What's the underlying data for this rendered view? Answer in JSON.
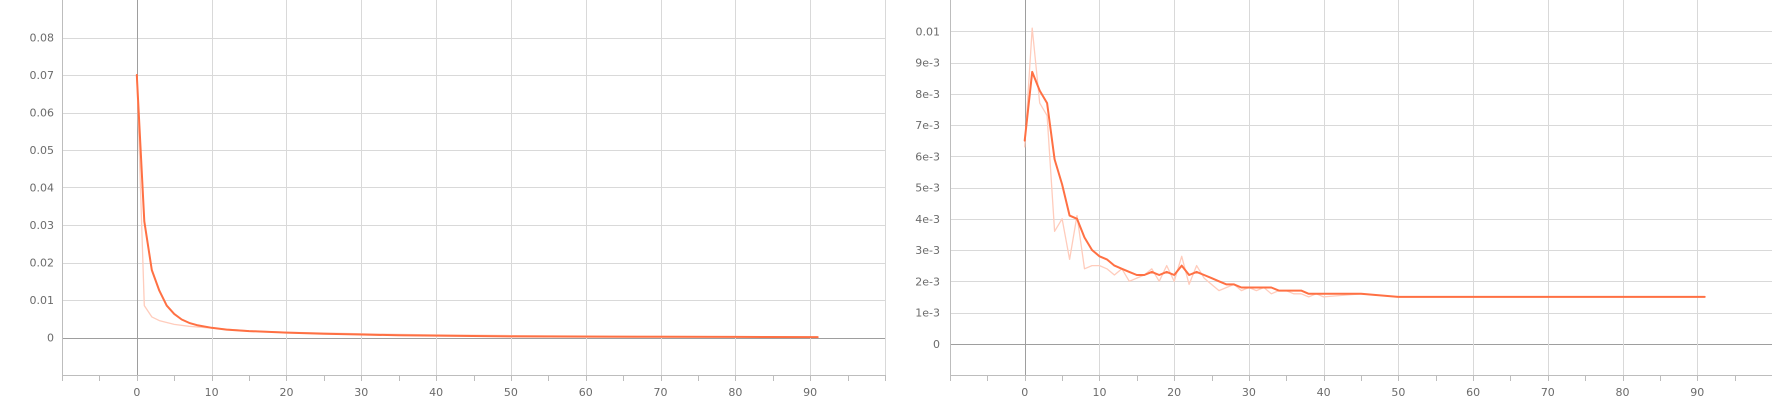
{
  "colors": {
    "series_main": "#ff7043",
    "series_raw": "#ffccbc",
    "grid": "#d9d9d9",
    "axis": "#9e9e9e",
    "frame": "#bdbdbd",
    "tick_text": "#6b6b6b"
  },
  "chart_data": [
    {
      "type": "line",
      "title": "",
      "xlabel": "",
      "ylabel": "",
      "xlim": [
        -10,
        100
      ],
      "ylim": [
        -0.01,
        0.09
      ],
      "grid": true,
      "x_ticks": [
        0,
        10,
        20,
        30,
        40,
        50,
        60,
        70,
        80,
        90
      ],
      "x_tick_labels": [
        "0",
        "10",
        "20",
        "30",
        "40",
        "50",
        "60",
        "70",
        "80",
        "90"
      ],
      "y_ticks": [
        0,
        0.01,
        0.02,
        0.03,
        0.04,
        0.05,
        0.06,
        0.07,
        0.08
      ],
      "y_tick_labels": [
        "0",
        "0.01",
        "0.02",
        "0.03",
        "0.04",
        "0.05",
        "0.06",
        "0.07",
        "0.08"
      ],
      "series": [
        {
          "role": "raw",
          "x": [
            0,
            1,
            2,
            3,
            4,
            5,
            7,
            10,
            15,
            20,
            30,
            40,
            50,
            60,
            70,
            80,
            91
          ],
          "y": [
            0.07,
            0.0085,
            0.0055,
            0.0045,
            0.004,
            0.0035,
            0.003,
            0.0025,
            0.0018,
            0.0014,
            0.001,
            0.0007,
            0.0005,
            0.0004,
            0.0003,
            0.0002,
            0.0001
          ]
        },
        {
          "role": "smoothed",
          "x": [
            0,
            1,
            2,
            3,
            4,
            5,
            6,
            7,
            8,
            10,
            12,
            15,
            20,
            25,
            30,
            35,
            40,
            50,
            60,
            70,
            80,
            91
          ],
          "y": [
            0.07,
            0.031,
            0.018,
            0.0125,
            0.0085,
            0.0063,
            0.0048,
            0.0039,
            0.0033,
            0.0026,
            0.0021,
            0.0017,
            0.0013,
            0.001,
            0.0008,
            0.0006,
            0.0005,
            0.0003,
            0.00025,
            0.0002,
            0.00015,
            0.0001
          ]
        }
      ]
    },
    {
      "type": "line",
      "title": "",
      "xlabel": "",
      "ylabel": "",
      "xlim": [
        -10,
        100
      ],
      "ylim": [
        -0.001,
        0.011
      ],
      "grid": true,
      "x_ticks": [
        0,
        10,
        20,
        30,
        40,
        50,
        60,
        70,
        80,
        90
      ],
      "x_tick_labels": [
        "0",
        "10",
        "20",
        "30",
        "40",
        "50",
        "60",
        "70",
        "80",
        "90"
      ],
      "y_ticks": [
        0,
        0.001,
        0.002,
        0.003,
        0.004,
        0.005,
        0.006,
        0.007,
        0.008,
        0.009,
        0.01
      ],
      "y_tick_labels": [
        "0",
        "1e-3",
        "2e-3",
        "3e-3",
        "4e-3",
        "5e-3",
        "6e-3",
        "7e-3",
        "8e-3",
        "9e-3",
        "0.01"
      ],
      "series": [
        {
          "role": "raw",
          "x": [
            0,
            1,
            2,
            3,
            4,
            5,
            6,
            7,
            8,
            9,
            10,
            11,
            12,
            13,
            14,
            15,
            16,
            17,
            18,
            19,
            20,
            21,
            22,
            23,
            24,
            25,
            26,
            27,
            28,
            29,
            30,
            31,
            32,
            33,
            34,
            35,
            36,
            37,
            38,
            39,
            40,
            45,
            50,
            55,
            60,
            65,
            70,
            75,
            80,
            85,
            91
          ],
          "y": [
            0.0063,
            0.0101,
            0.0077,
            0.0073,
            0.0036,
            0.004,
            0.0027,
            0.0041,
            0.0024,
            0.0025,
            0.0025,
            0.0024,
            0.0022,
            0.0024,
            0.002,
            0.0021,
            0.0022,
            0.0024,
            0.002,
            0.0025,
            0.002,
            0.0028,
            0.0019,
            0.0025,
            0.0021,
            0.0019,
            0.0017,
            0.0018,
            0.0019,
            0.0017,
            0.0018,
            0.0017,
            0.0018,
            0.0016,
            0.0017,
            0.0017,
            0.0016,
            0.0016,
            0.0015,
            0.0016,
            0.0015,
            0.0016,
            0.0015,
            0.0015,
            0.0015,
            0.0015,
            0.0015,
            0.0015,
            0.0015,
            0.0015,
            0.0015
          ]
        },
        {
          "role": "smoothed",
          "x": [
            0,
            1,
            2,
            3,
            4,
            5,
            6,
            7,
            8,
            9,
            10,
            11,
            12,
            13,
            14,
            15,
            16,
            17,
            18,
            19,
            20,
            21,
            22,
            23,
            24,
            25,
            26,
            27,
            28,
            29,
            30,
            31,
            32,
            33,
            34,
            35,
            36,
            37,
            38,
            39,
            40,
            45,
            50,
            55,
            60,
            65,
            70,
            75,
            80,
            85,
            91
          ],
          "y": [
            0.0065,
            0.0087,
            0.0081,
            0.0077,
            0.0059,
            0.0051,
            0.0041,
            0.004,
            0.0034,
            0.003,
            0.0028,
            0.0027,
            0.0025,
            0.0024,
            0.0023,
            0.0022,
            0.0022,
            0.0023,
            0.0022,
            0.0023,
            0.0022,
            0.0025,
            0.0022,
            0.0023,
            0.0022,
            0.0021,
            0.002,
            0.0019,
            0.0019,
            0.0018,
            0.0018,
            0.0018,
            0.0018,
            0.0018,
            0.0017,
            0.0017,
            0.0017,
            0.0017,
            0.0016,
            0.0016,
            0.0016,
            0.0016,
            0.0015,
            0.0015,
            0.0015,
            0.0015,
            0.0015,
            0.0015,
            0.0015,
            0.0015,
            0.0015
          ]
        }
      ]
    }
  ]
}
